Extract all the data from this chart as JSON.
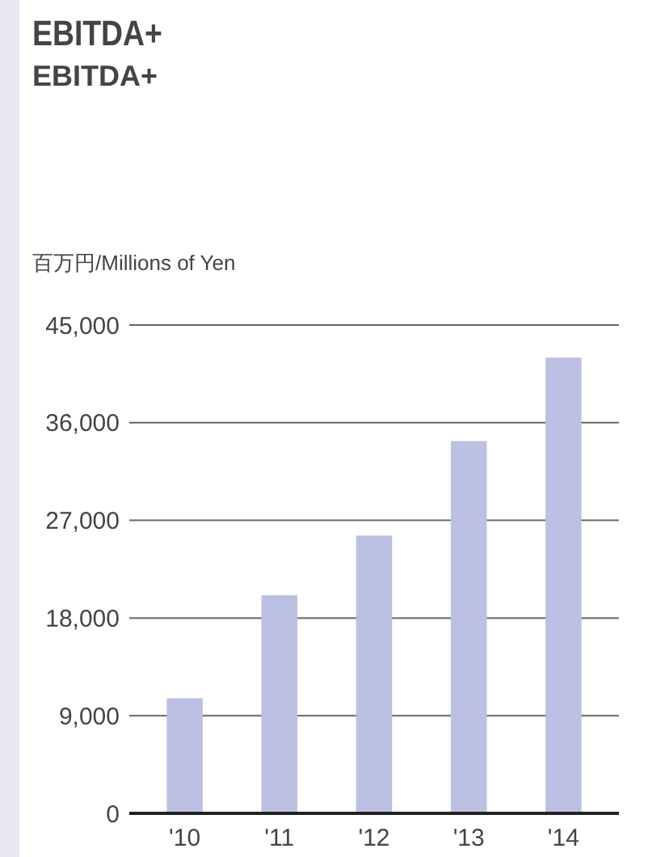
{
  "chart_data": {
    "type": "bar",
    "title": "EBITDA+",
    "subtitle": "EBITDA+",
    "ylabel": "百万円/Millions of Yen",
    "categories": [
      "'10",
      "'11",
      "'12",
      "'13",
      "'14"
    ],
    "values": [
      10600,
      20100,
      25600,
      34300,
      42000
    ],
    "color": "#bcc0e2",
    "ylim": [
      0,
      45000
    ],
    "yticks": [
      {
        "value": 0,
        "label": "0"
      },
      {
        "value": 9000,
        "label": "9,000"
      },
      {
        "value": 18000,
        "label": "18,000"
      },
      {
        "value": 27000,
        "label": "27,000"
      },
      {
        "value": 36000,
        "label": "36,000"
      },
      {
        "value": 45000,
        "label": "45,000"
      }
    ],
    "grid": "y"
  }
}
